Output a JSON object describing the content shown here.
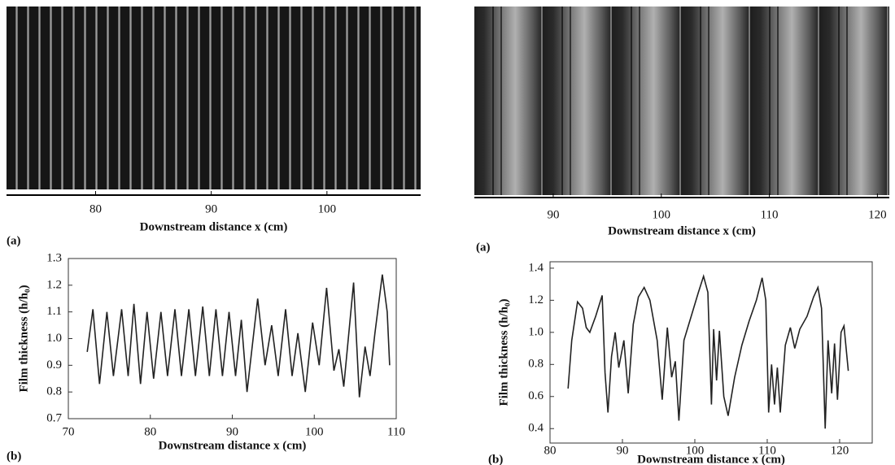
{
  "chart_data": [
    {
      "type": "image",
      "xlim": [
        72.3,
        108.1
      ],
      "xticks": [
        80,
        90,
        100
      ],
      "xlabel": "Downstream distance  x (cm)",
      "panel": "(a)"
    },
    {
      "type": "image",
      "xlim": [
        82.7,
        121.1
      ],
      "xticks": [
        90,
        100,
        110,
        120
      ],
      "xlabel": "Downstream distance  x (cm)",
      "panel": "(a)"
    },
    {
      "type": "line",
      "xlim": [
        70,
        110
      ],
      "xticks": [
        70,
        80,
        90,
        100,
        110
      ],
      "ylim": [
        0.7,
        1.3
      ],
      "yticks": [
        0.7,
        0.8,
        0.9,
        {
          "value": 1,
          "label": "1.0"
        },
        1.1,
        1.2,
        1.3
      ],
      "xlabel": "Downstream distance  x (cm)",
      "ylabel": "Film thickness (h/h₀)",
      "panel": "(b)",
      "color": "#222222",
      "x": [
        72.3,
        73,
        73.8,
        74.7,
        75.5,
        76.5,
        77.3,
        78,
        78.8,
        79.6,
        80.4,
        81.3,
        82.1,
        83,
        83.8,
        84.7,
        85.5,
        86.4,
        87.2,
        88,
        88.8,
        89.6,
        90.4,
        91.1,
        91.8,
        93.1,
        94,
        94.8,
        95.6,
        96.5,
        97.3,
        98,
        98.9,
        99.8,
        100.6,
        101.5,
        102.4,
        103,
        103.6,
        104.8,
        105.5,
        106.2,
        106.8,
        107.4,
        108.3,
        108.9,
        109.2
      ],
      "values": [
        0.95,
        1.11,
        0.83,
        1.1,
        0.86,
        1.11,
        0.86,
        1.13,
        0.83,
        1.1,
        0.85,
        1.1,
        0.86,
        1.11,
        0.86,
        1.11,
        0.86,
        1.12,
        0.86,
        1.11,
        0.86,
        1.1,
        0.86,
        1.07,
        0.8,
        1.15,
        0.9,
        1.05,
        0.86,
        1.11,
        0.86,
        1.02,
        0.8,
        1.06,
        0.9,
        1.19,
        0.88,
        0.96,
        0.82,
        1.21,
        0.78,
        0.97,
        0.86,
        1.02,
        1.24,
        1.1,
        0.9
      ]
    },
    {
      "type": "line",
      "xlim": [
        80,
        124.5
      ],
      "xticks": [
        80,
        90,
        100,
        110,
        120
      ],
      "ylim": [
        0.31,
        1.44
      ],
      "yticks": [
        0.4,
        0.6,
        0.8,
        {
          "value": 1,
          "label": "1.0"
        },
        1.2,
        1.4
      ],
      "xlabel": "Downstream distance  x (cm)",
      "ylabel": "Film thickness (h/h₀)",
      "panel": "(b)",
      "color": "#222222",
      "x": [
        82.5,
        83,
        83.8,
        84.5,
        85,
        85.5,
        86.3,
        87.2,
        87.6,
        88,
        88.5,
        89,
        89.5,
        90.2,
        90.8,
        91.5,
        92.2,
        93,
        93.8,
        94.8,
        95.5,
        96.2,
        96.8,
        97.3,
        97.8,
        98.5,
        99.5,
        100.5,
        101.2,
        101.8,
        102.3,
        102.6,
        103,
        103.4,
        104,
        104.6,
        105.5,
        106.5,
        107.5,
        108.5,
        109.3,
        109.8,
        110.2,
        110.6,
        111,
        111.4,
        111.8,
        112.5,
        113.2,
        113.8,
        114.5,
        115.5,
        116.4,
        117,
        117.5,
        118,
        118.4,
        118.9,
        119.3,
        119.7,
        120.2,
        120.6,
        121.2
      ],
      "values": [
        0.65,
        0.95,
        1.19,
        1.15,
        1.03,
        1.0,
        1.1,
        1.23,
        0.75,
        0.5,
        0.85,
        1.0,
        0.78,
        0.95,
        0.62,
        1.05,
        1.22,
        1.28,
        1.2,
        0.95,
        0.58,
        1.03,
        0.72,
        0.82,
        0.45,
        0.95,
        1.1,
        1.25,
        1.35,
        1.25,
        0.55,
        1.02,
        0.7,
        1.01,
        0.6,
        0.48,
        0.72,
        0.92,
        1.07,
        1.2,
        1.34,
        1.2,
        0.5,
        0.8,
        0.55,
        0.78,
        0.5,
        0.92,
        1.03,
        0.9,
        1.02,
        1.1,
        1.22,
        1.28,
        1.15,
        0.4,
        0.95,
        0.62,
        0.93,
        0.58,
        1.0,
        1.04,
        0.76
      ]
    }
  ]
}
